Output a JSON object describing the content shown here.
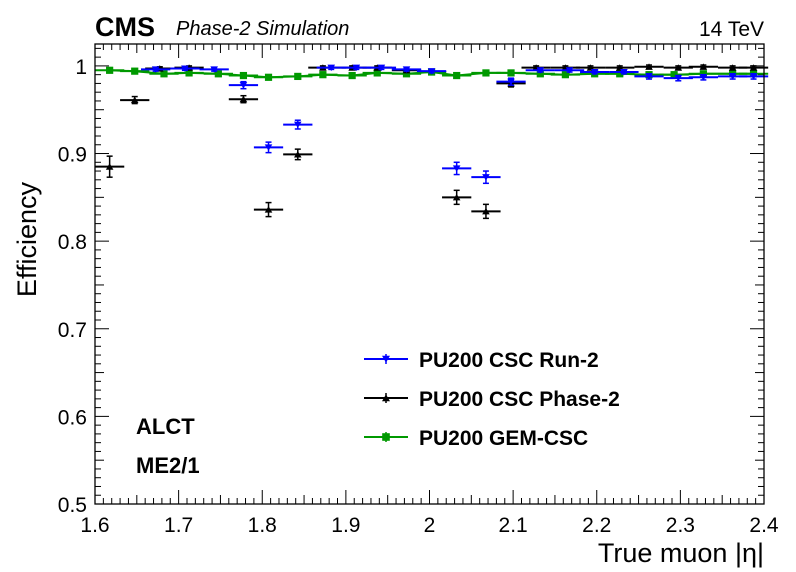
{
  "header": {
    "experiment": "CMS",
    "subtitle": "Phase-2 Simulation",
    "energy": "14 TeV"
  },
  "labels": {
    "line1": "ALCT",
    "line2": "ME2/1"
  },
  "chart_data": {
    "type": "scatter",
    "title": "",
    "xlabel": "True muon |η|",
    "ylabel": "Efficiency",
    "xlim": [
      1.6,
      2.4
    ],
    "ylim": [
      0.5,
      1.025
    ],
    "xticks": [
      "1.6",
      "1.7",
      "1.8",
      "1.9",
      "2",
      "2.1",
      "2.2",
      "2.3",
      "2.4"
    ],
    "yticks": [
      "0.5",
      "0.6",
      "0.7",
      "0.8",
      "0.9",
      "1"
    ],
    "grid": false,
    "legend_position": "bottom-center",
    "series": [
      {
        "name": "PU200 CSC Run-2",
        "color": "#0000ff",
        "marker": "triangle-down",
        "connected": false,
        "xerr": 0.0175,
        "points": [
          [
            1.6725,
            0.996,
            0.002
          ],
          [
            1.7075,
            0.997,
            0.002
          ],
          [
            1.7425,
            0.996,
            0.002
          ],
          [
            1.7775,
            0.978,
            0.004
          ],
          [
            1.8075,
            0.907,
            0.006
          ],
          [
            1.8425,
            0.933,
            0.005
          ],
          [
            1.8825,
            0.998,
            0.002
          ],
          [
            1.9125,
            0.998,
            0.002
          ],
          [
            1.9425,
            0.998,
            0.002
          ],
          [
            1.9725,
            0.996,
            0.002
          ],
          [
            2.0025,
            0.994,
            0.002
          ],
          [
            2.0325,
            0.883,
            0.007
          ],
          [
            2.0675,
            0.873,
            0.007
          ],
          [
            2.0975,
            0.982,
            0.004
          ],
          [
            2.1325,
            0.995,
            0.002
          ],
          [
            2.1675,
            0.995,
            0.002
          ],
          [
            2.1975,
            0.993,
            0.002
          ],
          [
            2.2325,
            0.993,
            0.002
          ],
          [
            2.2625,
            0.988,
            0.003
          ],
          [
            2.2975,
            0.986,
            0.003
          ],
          [
            2.3275,
            0.987,
            0.003
          ],
          [
            2.3625,
            0.988,
            0.003
          ],
          [
            2.3875,
            0.988,
            0.003
          ]
        ]
      },
      {
        "name": "PU200 CSC Phase-2",
        "color": "#000000",
        "marker": "triangle-up",
        "connected": false,
        "xerr": 0.0175,
        "points": [
          [
            1.6175,
            0.885,
            0.012
          ],
          [
            1.6475,
            0.961,
            0.004
          ],
          [
            1.6775,
            0.997,
            0.002
          ],
          [
            1.7125,
            0.998,
            0.002
          ],
          [
            1.7775,
            0.962,
            0.004
          ],
          [
            1.8075,
            0.836,
            0.008
          ],
          [
            1.8425,
            0.899,
            0.006
          ],
          [
            1.8725,
            0.998,
            0.002
          ],
          [
            1.9075,
            0.998,
            0.002
          ],
          [
            1.9375,
            0.998,
            0.002
          ],
          [
            1.9725,
            0.995,
            0.002
          ],
          [
            2.0325,
            0.85,
            0.008
          ],
          [
            2.0675,
            0.834,
            0.008
          ],
          [
            2.0975,
            0.98,
            0.004
          ],
          [
            2.1275,
            0.998,
            0.002
          ],
          [
            2.1625,
            0.998,
            0.002
          ],
          [
            2.1925,
            0.998,
            0.002
          ],
          [
            2.2275,
            0.998,
            0.002
          ],
          [
            2.2625,
            0.999,
            0.002
          ],
          [
            2.2975,
            0.998,
            0.002
          ],
          [
            2.3275,
            0.999,
            0.002
          ],
          [
            2.3625,
            0.998,
            0.002
          ],
          [
            2.3875,
            0.998,
            0.002
          ]
        ]
      },
      {
        "name": "PU200 GEM-CSC",
        "color": "#009900",
        "marker": "square",
        "connected": true,
        "xerr": 0.0175,
        "points": [
          [
            1.6175,
            0.995,
            0.002
          ],
          [
            1.6475,
            0.994,
            0.002
          ],
          [
            1.6825,
            0.991,
            0.002
          ],
          [
            1.7125,
            0.992,
            0.002
          ],
          [
            1.7475,
            0.991,
            0.002
          ],
          [
            1.7775,
            0.989,
            0.002
          ],
          [
            1.8075,
            0.987,
            0.002
          ],
          [
            1.8425,
            0.988,
            0.002
          ],
          [
            1.8725,
            0.99,
            0.002
          ],
          [
            1.9075,
            0.989,
            0.002
          ],
          [
            1.9375,
            0.992,
            0.002
          ],
          [
            1.9725,
            0.991,
            0.002
          ],
          [
            2.0025,
            0.993,
            0.002
          ],
          [
            2.0325,
            0.989,
            0.002
          ],
          [
            2.0675,
            0.992,
            0.002
          ],
          [
            2.0975,
            0.992,
            0.002
          ],
          [
            2.1325,
            0.991,
            0.002
          ],
          [
            2.1625,
            0.99,
            0.002
          ],
          [
            2.1975,
            0.991,
            0.002
          ],
          [
            2.2275,
            0.991,
            0.002
          ],
          [
            2.2625,
            0.99,
            0.002
          ],
          [
            2.2925,
            0.99,
            0.002
          ],
          [
            2.3275,
            0.991,
            0.002
          ],
          [
            2.3625,
            0.991,
            0.002
          ],
          [
            2.3875,
            0.991,
            0.002
          ]
        ]
      }
    ]
  }
}
